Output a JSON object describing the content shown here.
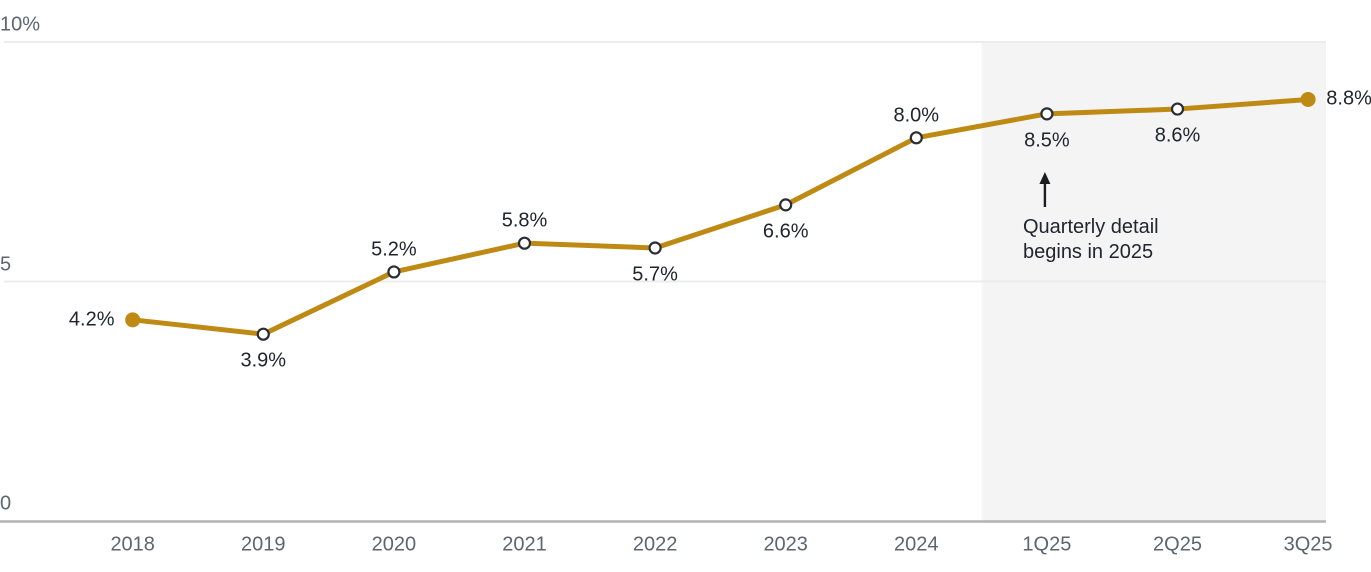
{
  "chart_data": {
    "type": "line",
    "categories": [
      "2018",
      "2019",
      "2020",
      "2021",
      "2022",
      "2023",
      "2024",
      "1Q25",
      "2Q25",
      "3Q25"
    ],
    "values": [
      4.2,
      3.9,
      5.2,
      5.8,
      5.7,
      6.6,
      8.0,
      8.5,
      8.6,
      8.8
    ],
    "point_labels": [
      "4.2%",
      "3.9%",
      "5.2%",
      "5.8%",
      "5.7%",
      "6.6%",
      "8.0%",
      "8.5%",
      "8.6%",
      "8.8%"
    ],
    "label_placements": [
      "left",
      "below",
      "above",
      "above",
      "below",
      "below",
      "above",
      "below",
      "below",
      "right"
    ],
    "marker_styles": [
      "filled",
      "open",
      "open",
      "open",
      "open",
      "open",
      "open",
      "open",
      "open",
      "filled"
    ],
    "title": "",
    "xlabel": "",
    "ylabel": "",
    "ylim": [
      0,
      10
    ],
    "yticks": [
      {
        "value": 10,
        "label": "10%"
      },
      {
        "value": 5,
        "label": "5"
      },
      {
        "value": 0,
        "label": "0"
      }
    ],
    "grid": "horizontal",
    "legend_position": "none",
    "shaded_region": {
      "starts_between": [
        "2024",
        "1Q25"
      ],
      "ends_at": "right edge of plot",
      "covers_categories": [
        "1Q25",
        "2Q25",
        "3Q25"
      ]
    },
    "annotation": {
      "line1": "Quarterly detail",
      "line2": "begins in 2025",
      "arrow_direction": "up",
      "points_to": "1Q25"
    }
  },
  "colors": {
    "line": "#BE8A14",
    "filled_marker": "#BE8A14",
    "open_marker_stroke": "#2A2E35",
    "open_marker_fill": "#FFFFFF",
    "point_label_text": "#21252E",
    "tick_label_text": "#5C6670",
    "gridline": "#ECECEC",
    "axis_line": "#AFB2B6",
    "shaded_region_fill": "#F4F4F4",
    "annotation_text": "#21252E",
    "annotation_arrow": "#1A1C20",
    "background": "#FFFFFF"
  }
}
